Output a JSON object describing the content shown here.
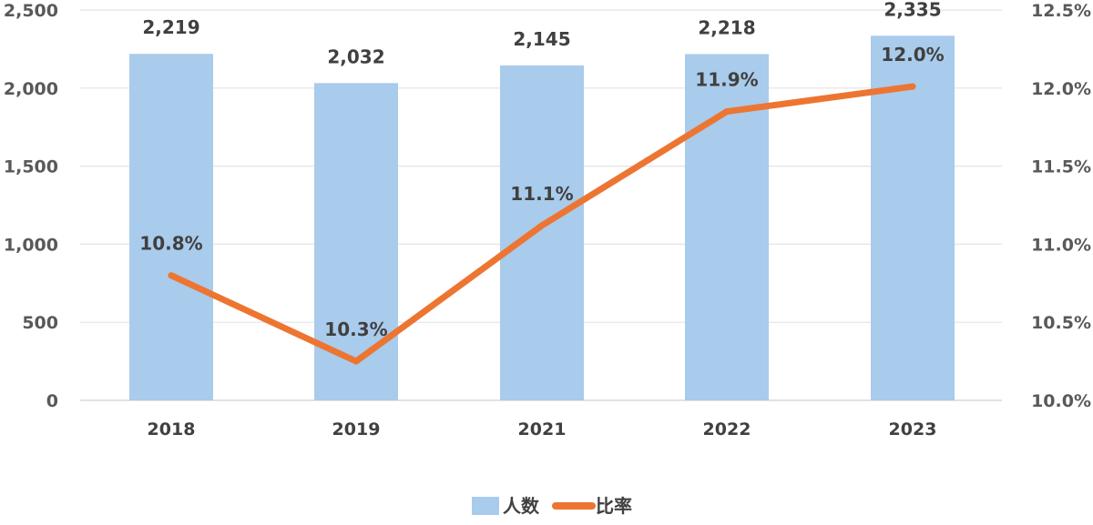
{
  "chart_data": {
    "type": "bar",
    "categories": [
      "2018",
      "2019",
      "2021",
      "2022",
      "2023"
    ],
    "series": [
      {
        "name": "人数",
        "type": "bar",
        "axis": "left",
        "values": [
          2219,
          2032,
          2145,
          2218,
          2335
        ],
        "labels": [
          "2,219",
          "2,032",
          "2,145",
          "2,218",
          "2,335"
        ],
        "color": "#A9CBEC"
      },
      {
        "name": "比率",
        "type": "line",
        "axis": "right",
        "values": [
          10.8,
          10.25,
          11.12,
          11.85,
          12.01
        ],
        "labels": [
          "10.8%",
          "10.3%",
          "11.1%",
          "11.9%",
          "12.0%"
        ],
        "color": "#ED7532"
      }
    ],
    "left_axis": {
      "ylim": [
        0,
        2500
      ],
      "ticks": [
        "0",
        "500",
        "1,000",
        "1,500",
        "2,000",
        "2,500"
      ]
    },
    "right_axis": {
      "ylim": [
        10.0,
        12.5
      ],
      "ticks": [
        "10.0%",
        "10.5%",
        "11.0%",
        "11.5%",
        "12.0%",
        "12.5%"
      ]
    },
    "grid": true,
    "legend_position": "bottom",
    "title": "",
    "xlabel": "",
    "ylabel": ""
  }
}
